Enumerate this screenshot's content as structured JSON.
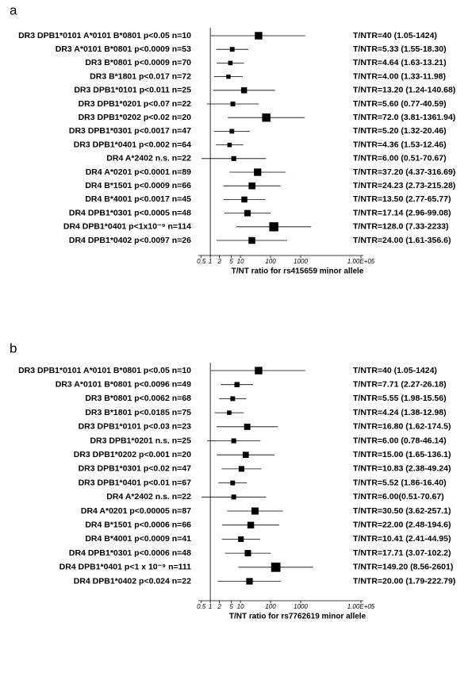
{
  "chart_data": [
    {
      "type": "forest",
      "panel": "a",
      "xlabel": "T/NT ratio for rs415659 minor allele",
      "log_x": true,
      "reference_line": 1,
      "color": "#000000",
      "xlim": [
        0.4,
        100000
      ],
      "xticks": [
        0.5,
        1,
        2,
        5,
        10,
        100,
        1000,
        {
          "value": 100000,
          "label": "1.00E+05"
        }
      ],
      "categories": [
        "DR3 DPB1*0101 A*0101 B*0801 p<0.05 n=10",
        "DR3 A*0101 B*0801 p<0.0009 n=53",
        "DR3 B*0801 p<0.0009 n=70",
        "DR3 B*1801 p<0.017 n=72",
        "DR3 DPB1*0101 p<0.011 n=25",
        "DR3 DPB1*0201 p<0.07 n=22",
        "DR3 DPB1*0202 p<0.02 n=20",
        "DR3 DPB1*0301 p<0.0017 n=47",
        "DR3 DPB1*0401 p<0.002 n=64",
        "DR4 A*2402 n.s. n=22",
        "DR4 A*0201 p<0.0001 n=89",
        "DR4 B*1501 p<0.0009 n=66",
        "DR4 B*4001 p<0.0017 n=45",
        "DR4 DPB1*0301 p<0.0005 n=48",
        "DR4 DPB1*0401 p<1x10⁻⁹ n=114",
        "DR4 DPB1*0402 p<0.0097 n=26"
      ],
      "values": [
        40,
        5.33,
        4.64,
        4.0,
        13.2,
        5.6,
        72.0,
        5.2,
        4.36,
        6.0,
        37.2,
        24.23,
        13.5,
        17.14,
        128.0,
        24.0
      ],
      "lower": [
        1.05,
        1.55,
        1.63,
        1.33,
        1.24,
        0.77,
        3.81,
        1.32,
        1.53,
        0.51,
        4.37,
        2.73,
        2.77,
        2.96,
        7.33,
        1.61
      ],
      "upper": [
        1424,
        18.3,
        13.21,
        11.98,
        140.68,
        40.59,
        1361.94,
        20.46,
        12.46,
        70.67,
        316.69,
        215.28,
        65.77,
        99.08,
        2233,
        356.6
      ],
      "value_labels": [
        "T/NTR=40 (1.05-1424)",
        "T/NTR=5.33 (1.55-18.30)",
        "T/NTR=4.64 (1.63-13.21)",
        "T/NTR=4.00 (1.33-11.98)",
        "T/NTR=13.20 (1.24-140.68)",
        "T/NTR=5.60 (0.77-40.59)",
        "T/NTR=72.0 (3.81-1361.94)",
        "T/NTR=5.20 (1.32-20.46)",
        "T/NTR=4.36 (1.53-12.46)",
        "T/NTR=6.00 (0.51-70.67)",
        "T/NTR=37.20 (4.37-316.69)",
        "T/NTR=24.23 (2.73-215.28)",
        "T/NTR=13.50 (2.77-65.77)",
        "T/NTR=17.14 (2.96-99.08)",
        "T/NTR=128.0 (7.33-2233)",
        "T/NTR=24.00 (1.61-356.6)"
      ]
    },
    {
      "type": "forest",
      "panel": "b",
      "xlabel": "T/NT ratio for rs7762619 minor allele",
      "log_x": true,
      "reference_line": 1,
      "color": "#000000",
      "xlim": [
        0.4,
        100000
      ],
      "xticks": [
        0.5,
        1,
        2,
        5,
        10,
        100,
        1000,
        {
          "value": 100000,
          "label": "1.00E+05"
        }
      ],
      "categories": [
        "DR3 DPB1*0101 A*0101 B*0801 p<0.05 n=10",
        "DR3 A*0101 B*0801 p<0.0096 n=49",
        "DR3 B*0801 p<0.0062 n=68",
        "DR3 B*1801 p<0.0185 n=75",
        "DR3 DPB1*0101 p<0.03 n=23",
        "DR3 DPB1*0201 n.s. n=25",
        "DR3 DPB1*0202 p<0.001 n=20",
        "DR3 DPB1*0301 p<0.02 n=47",
        "DR3 DPB1*0401 p<0.01 n=67",
        "DR4 A*2402 n.s. n=22",
        "DR4 A*0201 p<0.00005 n=87",
        "DR4 B*1501 p<0.0006 n=66",
        "DR4 B*4001 p<0.0009 n=41",
        "DR4 DPB1*0301 p<0.0006 n=48",
        "DR4 DPB1*0401 p<1 x 10⁻⁹ n=111",
        "DR4 DPB1*0402 p<0.024 n=22"
      ],
      "values": [
        40,
        7.71,
        5.55,
        4.24,
        16.8,
        6.0,
        15.0,
        10.83,
        5.52,
        6.0,
        30.5,
        22.0,
        10.41,
        17.71,
        149.2,
        20.0
      ],
      "lower": [
        1.05,
        2.27,
        1.98,
        1.38,
        1.62,
        0.78,
        1.65,
        2.38,
        1.86,
        0.51,
        3.62,
        2.48,
        2.41,
        3.07,
        8.56,
        1.79
      ],
      "upper": [
        1424,
        26.18,
        15.56,
        12.98,
        174.5,
        46.14,
        136.1,
        49.24,
        16.4,
        70.67,
        257.1,
        194.6,
        44.95,
        102.2,
        2601,
        222.79
      ],
      "value_labels": [
        "T/NTR=40 (1.05-1424)",
        "T/NTR=7.71 (2.27-26.18)",
        "T/NTR=5.55 (1.98-15.56)",
        "T/NTR=4.24 (1.38-12.98)",
        "T/NTR=16.80 (1.62-174.5)",
        "T/NTR=6.00 (0.78-46.14)",
        "T/NTR=15.00 (1.65-136.1)",
        "T/NTR=10.83 (2.38-49.24)",
        "T/NTR=5.52 (1.86-16.40)",
        "T/NTR=6.00(0.51-70.67)",
        "T/NTR=30.50 (3.62-257.1)",
        "T/NTR=22.00 (2.48-194.6)",
        "T/NTR=10.41 (2.41-44.95)",
        "T/NTR=17.71 (3.07-102.2)",
        "T/NTR=149.20 (8.56-2601)",
        "T/NTR=20.00 (1.79-222.79)"
      ]
    }
  ]
}
